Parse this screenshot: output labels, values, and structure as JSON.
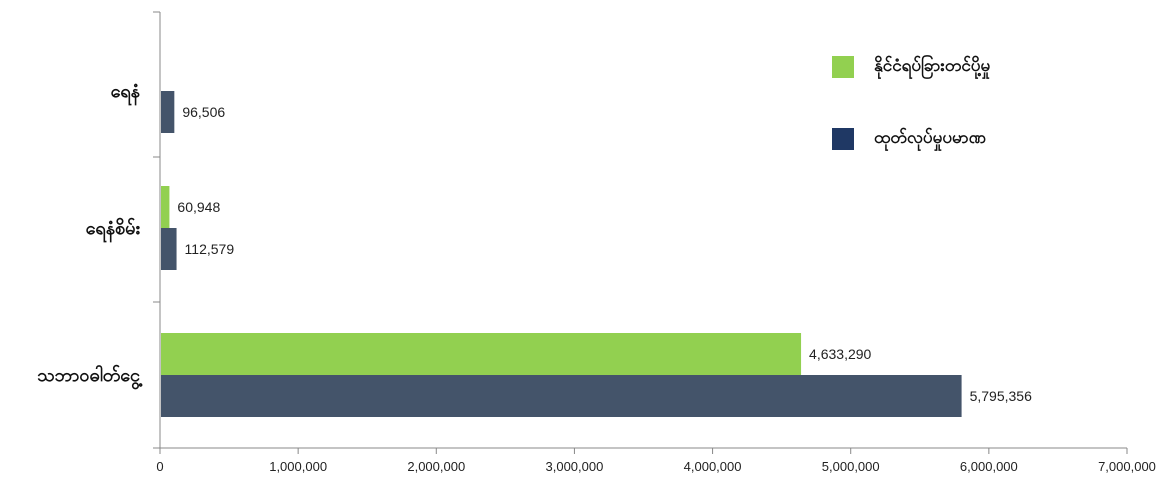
{
  "chart_data": {
    "type": "bar",
    "orientation": "horizontal",
    "categories": [
      "ရေနံ",
      "ရေနံစိမ်း",
      "သဘာဝဓါတ်ငွေ့"
    ],
    "series": [
      {
        "name": "နိုင်ငံရပ်ခြားတင်ပို့မှု",
        "color": "#92d050",
        "values": [
          null,
          60948,
          4633290
        ],
        "labels": [
          "",
          "60,948",
          "4,633,290"
        ]
      },
      {
        "name": "ထုတ်လုပ်မှုပမာဏ",
        "color": "#44546a",
        "values": [
          96506,
          112579,
          5795356
        ],
        "labels": [
          "96,506",
          "112,579",
          "5,795,356"
        ]
      }
    ],
    "x_ticks": [
      "0",
      "1,000,000",
      "2,000,000",
      "3,000,000",
      "4,000,000",
      "5,000,000",
      "6,000,000",
      "7,000,000"
    ],
    "xlim": [
      0,
      7000000
    ],
    "title": "",
    "xlabel": "",
    "ylabel": "",
    "grid": false,
    "legend_position": "top-right",
    "legend_swatch_colors": [
      "#92d050",
      "#1f3864"
    ]
  }
}
